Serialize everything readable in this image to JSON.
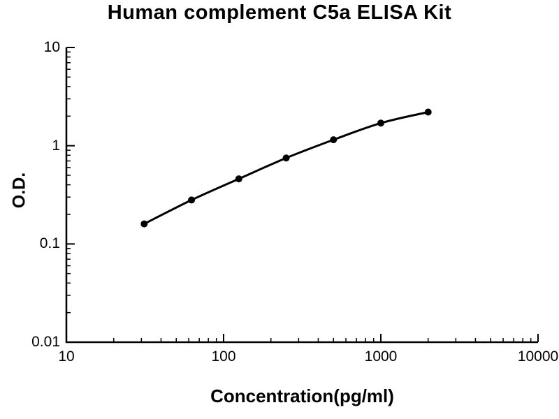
{
  "title": "Human complement C5a ELISA Kit",
  "chart_data": {
    "type": "line",
    "title": "Human complement C5a ELISA Kit",
    "xlabel": "Concentration(pg/ml)",
    "ylabel": "O.D.",
    "xscale": "log",
    "yscale": "log",
    "xlim": [
      10,
      10000
    ],
    "ylim": [
      0.01,
      10
    ],
    "x": [
      31.25,
      62.5,
      125,
      250,
      500,
      1000,
      2000
    ],
    "y": [
      0.16,
      0.28,
      0.46,
      0.75,
      1.15,
      1.7,
      2.2
    ],
    "x_ticks": [
      "10",
      "100",
      "1000",
      "10000"
    ],
    "y_ticks": [
      "0.01",
      "0.1",
      "1",
      "10"
    ],
    "marker": "circle",
    "line_color": "#000000",
    "marker_color": "#000000",
    "axis_color": "#000000",
    "grid": false
  }
}
